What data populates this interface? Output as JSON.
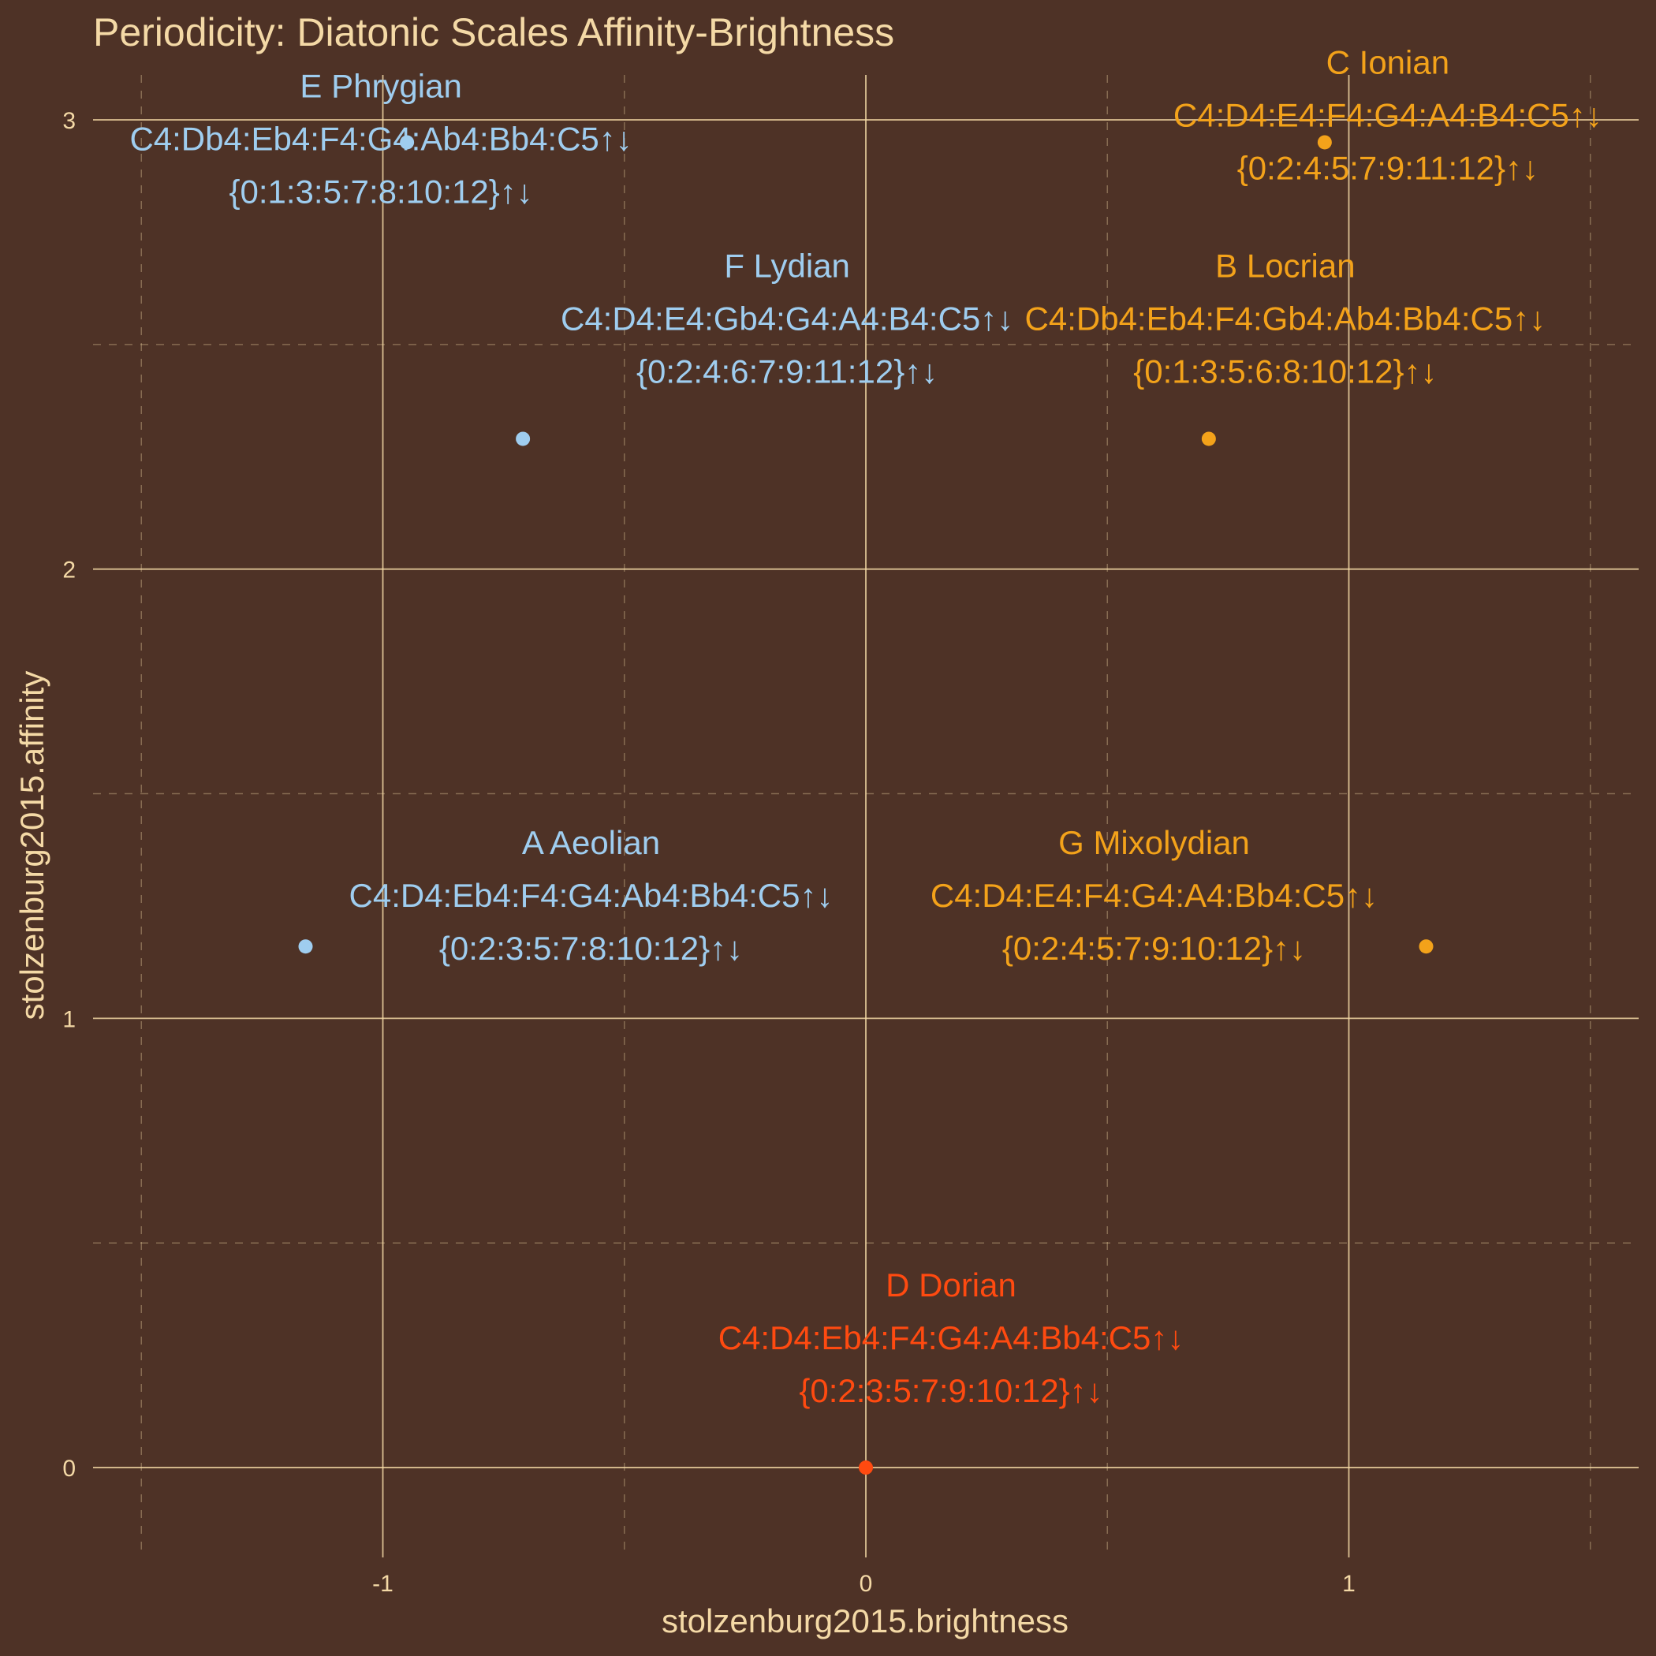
{
  "chart_data": {
    "type": "scatter",
    "title": "Periodicity: Diatonic Scales Affinity-Brightness",
    "xlabel": "stolzenburg2015.brightness",
    "ylabel": "stolzenburg2015.affinity",
    "xlim": [
      -1.6,
      1.6
    ],
    "ylim": [
      -0.2,
      3.1
    ],
    "x_ticks": [
      -1,
      0,
      1
    ],
    "x_tick_labels": [
      "-1",
      "0",
      "1"
    ],
    "y_ticks": [
      0,
      1,
      2,
      3
    ],
    "y_tick_labels": [
      "0",
      "1",
      "2",
      "3"
    ],
    "grid": true,
    "colors": {
      "background": "#4e3226",
      "text": "#f4d9a6",
      "grid": "#f4d9a6",
      "minor": "#f3a21a",
      "major": "#9fcdef",
      "tonic": "#ff4a10"
    },
    "points": [
      {
        "name": "C Ionian",
        "notes": "C4:D4:E4:F4:G4:A4:B4:C5↑↓",
        "intervals": "{0:2:4:5:7:9:11:12}↑↓",
        "x": 0.95,
        "y": 2.95,
        "group": "minor"
      },
      {
        "name": "D Dorian",
        "notes": "C4:D4:Eb4:F4:G4:A4:Bb4:C5↑↓",
        "intervals": "{0:2:3:5:7:9:10:12}↑↓",
        "x": 0.0,
        "y": 0.0,
        "group": "tonic"
      },
      {
        "name": "E Phrygian",
        "notes": "C4:Db4:Eb4:F4:G4:Ab4:Bb4:C5↑↓",
        "intervals": "{0:1:3:5:7:8:10:12}↑↓",
        "x": -0.95,
        "y": 2.95,
        "group": "major"
      },
      {
        "name": "F Lydian",
        "notes": "C4:D4:E4:Gb4:G4:A4:B4:C5↑↓",
        "intervals": "{0:2:4:6:7:9:11:12}↑↓",
        "x": -0.71,
        "y": 2.29,
        "group": "major"
      },
      {
        "name": "G Mixolydian",
        "notes": "C4:D4:E4:F4:G4:A4:Bb4:C5↑↓",
        "intervals": "{0:2:4:5:7:9:10:12}↑↓",
        "x": 1.16,
        "y": 1.16,
        "group": "minor"
      },
      {
        "name": "A Aeolian",
        "notes": "C4:D4:Eb4:F4:G4:Ab4:Bb4:C5↑↓",
        "intervals": "{0:2:3:5:7:8:10:12}↑↓",
        "x": -1.16,
        "y": 1.16,
        "group": "major"
      },
      {
        "name": "B Locrian",
        "notes": "C4:Db4:Eb4:F4:Gb4:Ab4:Bb4:C5↑↓",
        "intervals": "{0:1:3:5:6:8:10:12}↑↓",
        "x": 0.71,
        "y": 2.29,
        "group": "minor"
      }
    ]
  }
}
